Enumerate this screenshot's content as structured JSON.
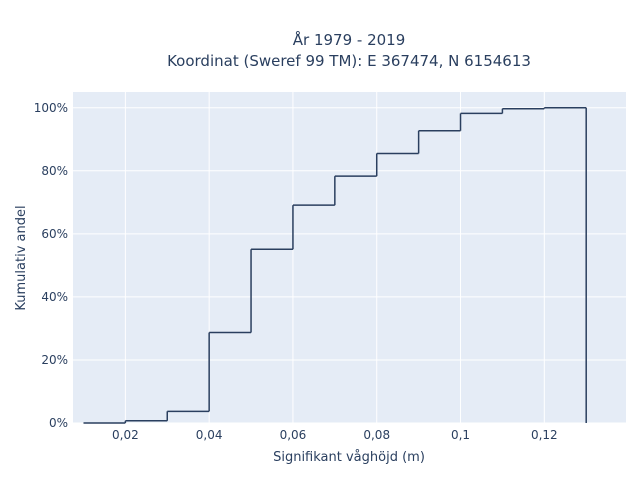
{
  "chart_data": {
    "type": "line",
    "title": "År 1979 - 2019",
    "subtitle": "Koordinat (Sweref 99 TM): E 367474, N 6154613",
    "xlabel": "Signifikant våghöjd (m)",
    "ylabel": "Kumulativ andel",
    "xlim": [
      0.0075,
      0.1395
    ],
    "ylim": [
      0,
      1.05
    ],
    "x_ticks": [
      {
        "value": 0.02,
        "label": "0,02"
      },
      {
        "value": 0.04,
        "label": "0,04"
      },
      {
        "value": 0.06,
        "label": "0,06"
      },
      {
        "value": 0.08,
        "label": "0,08"
      },
      {
        "value": 0.1,
        "label": "0,1"
      },
      {
        "value": 0.12,
        "label": "0,12"
      }
    ],
    "y_ticks": [
      {
        "value": 0.0,
        "label": "0%"
      },
      {
        "value": 0.2,
        "label": "20%"
      },
      {
        "value": 0.4,
        "label": "40%"
      },
      {
        "value": 0.6,
        "label": "60%"
      },
      {
        "value": 0.8,
        "label": "80%"
      },
      {
        "value": 1.0,
        "label": "100%"
      }
    ],
    "grid": true,
    "series": [
      {
        "line_shape": "step",
        "color": "#2a3f5f",
        "bins": [
          {
            "x0": 0.01,
            "x1": 0.02,
            "y": 0.0
          },
          {
            "x0": 0.02,
            "x1": 0.03,
            "y": 0.007
          },
          {
            "x0": 0.03,
            "x1": 0.04,
            "y": 0.037
          },
          {
            "x0": 0.04,
            "x1": 0.05,
            "y": 0.287
          },
          {
            "x0": 0.05,
            "x1": 0.06,
            "y": 0.551
          },
          {
            "x0": 0.06,
            "x1": 0.07,
            "y": 0.691
          },
          {
            "x0": 0.07,
            "x1": 0.08,
            "y": 0.783
          },
          {
            "x0": 0.08,
            "x1": 0.09,
            "y": 0.855
          },
          {
            "x0": 0.09,
            "x1": 0.1,
            "y": 0.927
          },
          {
            "x0": 0.1,
            "x1": 0.11,
            "y": 0.982
          },
          {
            "x0": 0.11,
            "x1": 0.12,
            "y": 0.997
          },
          {
            "x0": 0.12,
            "x1": 0.13,
            "y": 1.0
          }
        ],
        "drop_to_zero_at": 0.13
      }
    ]
  },
  "colors": {
    "plot_background": "#e5ecf6",
    "grid": "#ffffff",
    "line": "#2a3f5f",
    "text": "#2a3f5f"
  }
}
